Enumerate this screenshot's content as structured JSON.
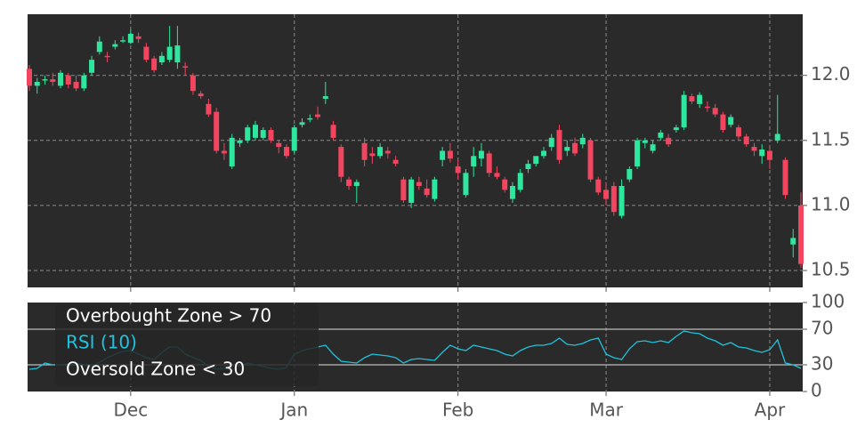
{
  "chart_data": [
    {
      "type": "candlestick",
      "up_color": "#2ee69e",
      "down_color": "#f2455f",
      "open": [
        12.05,
        11.92,
        11.96,
        11.97,
        11.92,
        12.0,
        11.95,
        11.9,
        12.02,
        12.18,
        12.15,
        12.22,
        12.26,
        12.25,
        12.3,
        12.22,
        12.13,
        12.1,
        12.12,
        12.1,
        12.07,
        12.0,
        11.86,
        11.78,
        11.72,
        11.42,
        11.3,
        11.48,
        11.5,
        11.52,
        11.52,
        11.58,
        11.48,
        11.45,
        11.42,
        11.62,
        11.66,
        11.7,
        11.82,
        11.62,
        11.45,
        11.2,
        11.15,
        11.48,
        11.4,
        11.38,
        11.42,
        11.35,
        11.2,
        11.02,
        11.18,
        11.13,
        11.05,
        11.35,
        11.42,
        11.3,
        11.08,
        11.3,
        11.36,
        11.4,
        11.25,
        11.2,
        11.05,
        11.12,
        11.28,
        11.32,
        11.38,
        11.45,
        11.58,
        11.42,
        11.48,
        11.47,
        11.5,
        11.2,
        11.12,
        11.15,
        10.92,
        11.2,
        11.3,
        11.48,
        11.42,
        11.52,
        11.52,
        11.58,
        11.6,
        11.84,
        11.78,
        11.76,
        11.75,
        11.7,
        11.62,
        11.6,
        11.53,
        11.45,
        11.38,
        11.42,
        11.5,
        11.35,
        10.7,
        11.0
      ],
      "high": [
        12.08,
        11.98,
        12.0,
        12.02,
        12.04,
        12.02,
        12.0,
        12.02,
        12.15,
        12.3,
        12.18,
        12.27,
        12.3,
        12.35,
        12.33,
        12.25,
        12.15,
        12.18,
        12.38,
        12.38,
        12.1,
        12.02,
        11.88,
        11.82,
        11.75,
        11.48,
        11.55,
        11.52,
        11.62,
        11.65,
        11.6,
        11.6,
        11.5,
        11.47,
        11.62,
        11.67,
        11.7,
        11.76,
        11.95,
        11.65,
        11.47,
        11.22,
        11.2,
        11.52,
        11.45,
        11.48,
        11.45,
        11.38,
        11.22,
        11.22,
        11.22,
        11.2,
        11.22,
        11.45,
        11.48,
        11.35,
        11.28,
        11.45,
        11.48,
        11.42,
        11.3,
        11.22,
        11.18,
        11.28,
        11.35,
        11.38,
        11.45,
        11.55,
        11.62,
        11.5,
        11.52,
        11.55,
        11.52,
        11.22,
        11.18,
        11.18,
        11.2,
        11.3,
        11.52,
        11.52,
        11.5,
        11.58,
        11.55,
        11.62,
        11.88,
        11.86,
        11.87,
        11.8,
        11.78,
        11.72,
        11.7,
        11.62,
        11.55,
        11.48,
        11.47,
        11.44,
        11.85,
        11.37,
        10.82,
        11.1
      ],
      "low": [
        11.88,
        11.86,
        11.93,
        11.92,
        11.9,
        11.9,
        11.88,
        11.88,
        12.0,
        12.16,
        12.1,
        12.2,
        12.25,
        12.24,
        12.25,
        12.1,
        12.02,
        12.08,
        12.1,
        12.05,
        12.0,
        11.85,
        11.82,
        11.68,
        11.4,
        11.35,
        11.28,
        11.45,
        11.48,
        11.5,
        11.5,
        11.48,
        11.4,
        11.36,
        11.4,
        11.6,
        11.64,
        11.66,
        11.78,
        11.5,
        11.18,
        11.12,
        11.02,
        11.3,
        11.32,
        11.36,
        11.36,
        11.3,
        11.02,
        10.98,
        11.12,
        11.06,
        11.03,
        11.3,
        11.33,
        11.2,
        11.06,
        11.22,
        11.3,
        11.22,
        11.2,
        11.1,
        11.02,
        11.1,
        11.25,
        11.3,
        11.36,
        11.42,
        11.32,
        11.38,
        11.38,
        11.44,
        11.18,
        11.08,
        11.0,
        10.92,
        10.9,
        11.18,
        11.28,
        11.44,
        11.4,
        11.5,
        11.45,
        11.56,
        11.58,
        11.78,
        11.75,
        11.72,
        11.68,
        11.56,
        11.6,
        11.5,
        11.45,
        11.38,
        11.32,
        11.28,
        11.48,
        11.05,
        10.6,
        10.52
      ],
      "close": [
        11.92,
        11.95,
        11.97,
        11.95,
        12.02,
        11.93,
        11.9,
        12.0,
        12.12,
        12.26,
        12.14,
        12.24,
        12.27,
        12.32,
        12.28,
        12.12,
        12.04,
        12.15,
        12.22,
        12.23,
        12.06,
        11.88,
        11.84,
        11.7,
        11.42,
        11.4,
        11.52,
        11.5,
        11.6,
        11.62,
        11.58,
        11.5,
        11.45,
        11.38,
        11.6,
        11.64,
        11.67,
        11.68,
        11.84,
        11.52,
        11.22,
        11.15,
        11.18,
        11.35,
        11.38,
        11.45,
        11.4,
        11.32,
        11.04,
        11.2,
        11.15,
        11.08,
        11.2,
        11.42,
        11.36,
        11.25,
        11.25,
        11.38,
        11.42,
        11.25,
        11.22,
        11.12,
        11.15,
        11.25,
        11.32,
        11.38,
        11.42,
        11.52,
        11.35,
        11.45,
        11.4,
        11.52,
        11.2,
        11.1,
        11.05,
        10.95,
        11.15,
        11.28,
        11.5,
        11.5,
        11.47,
        11.56,
        11.47,
        11.6,
        11.85,
        11.8,
        11.85,
        11.75,
        11.7,
        11.58,
        11.68,
        11.53,
        11.47,
        11.42,
        11.43,
        11.35,
        11.55,
        11.08,
        10.75,
        10.55
      ],
      "ylim": [
        10.37,
        12.47
      ],
      "yticks": [
        10.5,
        {
          "value": 11,
          "label": "11.0"
        },
        11.5,
        {
          "value": 12,
          "label": "12.0"
        }
      ],
      "grid": true
    },
    {
      "type": "line",
      "categories": [
        null,
        null,
        null,
        null,
        null,
        null,
        null,
        null,
        null,
        null,
        null,
        null,
        null,
        "Dec",
        null,
        null,
        null,
        null,
        null,
        null,
        null,
        null,
        null,
        null,
        null,
        null,
        null,
        null,
        null,
        null,
        null,
        null,
        null,
        null,
        "Jan",
        null,
        null,
        null,
        null,
        null,
        null,
        null,
        null,
        null,
        null,
        null,
        null,
        null,
        null,
        null,
        null,
        null,
        null,
        null,
        null,
        "Feb",
        null,
        null,
        null,
        null,
        null,
        null,
        null,
        null,
        null,
        null,
        null,
        null,
        null,
        null,
        null,
        null,
        null,
        null,
        "Mar",
        null,
        null,
        null,
        null,
        null,
        null,
        null,
        null,
        null,
        null,
        null,
        null,
        null,
        null,
        null,
        null,
        null,
        null,
        null,
        null,
        "Apr",
        null,
        null,
        null,
        null
      ],
      "series": [
        {
          "name": "RSI (10)",
          "color": "#1fc3dc",
          "values": [
            25,
            26,
            32,
            30,
            30,
            31,
            32,
            30,
            28,
            33,
            38,
            42,
            45,
            46,
            42,
            38,
            36,
            44,
            50,
            50,
            42,
            38,
            35,
            28,
            25,
            26,
            30,
            28,
            32,
            30,
            28,
            26,
            25,
            27,
            42,
            46,
            48,
            50,
            52,
            42,
            34,
            33,
            32,
            38,
            42,
            41,
            40,
            38,
            32,
            36,
            37,
            36,
            35,
            44,
            52,
            48,
            46,
            52,
            50,
            48,
            46,
            42,
            40,
            46,
            50,
            52,
            52,
            54,
            60,
            53,
            52,
            54,
            58,
            60,
            42,
            38,
            36,
            48,
            56,
            57,
            55,
            57,
            55,
            62,
            68,
            66,
            65,
            60,
            57,
            52,
            55,
            50,
            49,
            46,
            44,
            47,
            58,
            32,
            30,
            26
          ]
        }
      ],
      "zones": [
        {
          "name": "Overbought Zone > 70",
          "value": 70
        },
        {
          "name": "Oversold Zone < 30",
          "value": 30
        }
      ],
      "ylim": [
        0,
        100
      ],
      "yticks": [
        0,
        30,
        70,
        100
      ],
      "grid": true
    }
  ]
}
